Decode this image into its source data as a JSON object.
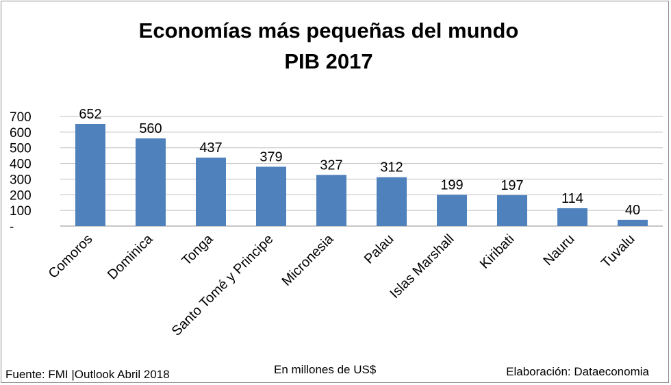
{
  "chart_data": {
    "type": "bar",
    "title_line1": "Economías más pequeñas del mundo",
    "title_line2": "PIB 2017",
    "categories": [
      "Comoros",
      "Dominica",
      "Tonga",
      "Santo Tomé y Principe",
      "Micronesia",
      "Palau",
      "Islas Marshall",
      "Kiribati",
      "Nauru",
      "Tuvalu"
    ],
    "values": [
      652,
      560,
      437,
      379,
      327,
      312,
      199,
      197,
      114,
      40
    ],
    "ylim": [
      0,
      700
    ],
    "ytick_labels": [
      "-",
      "100",
      "200",
      "300",
      "400",
      "500",
      "600",
      "700"
    ],
    "bar_color": "#4f81bd",
    "grid": true,
    "data_labels": true
  },
  "footer": {
    "source": "Fuente: FMI |Outlook Abril 2018",
    "units": "En millones de US$",
    "credit": "Elaboración: Dataeconomia"
  }
}
